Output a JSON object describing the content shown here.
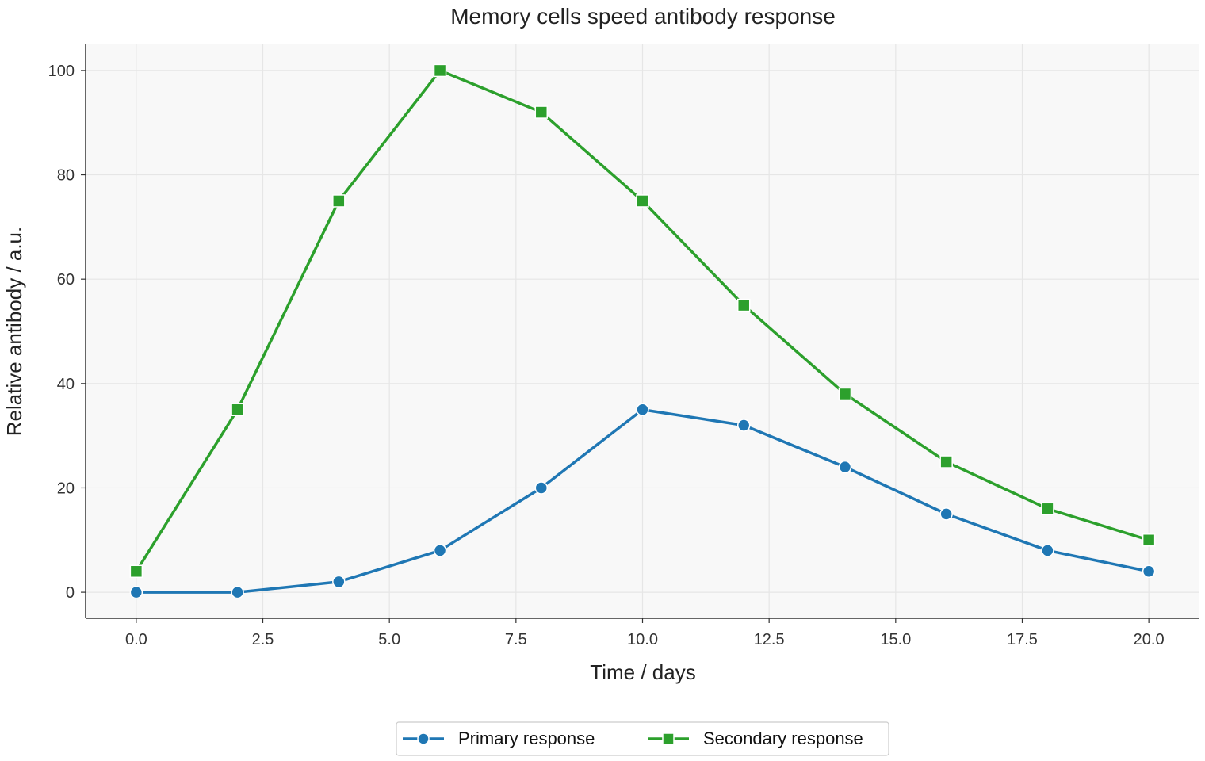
{
  "chart_data": {
    "type": "line",
    "title": "Memory cells speed antibody response",
    "xlabel": "Time / days",
    "ylabel": "Relative antibody / a.u.",
    "xlim": [
      -1,
      21
    ],
    "ylim": [
      -5,
      105
    ],
    "xticks": [
      0,
      2.5,
      5,
      7.5,
      10,
      12.5,
      15,
      17.5,
      20
    ],
    "xtick_labels": [
      "0.0",
      "2.5",
      "5.0",
      "7.5",
      "10.0",
      "12.5",
      "15.0",
      "17.5",
      "20.0"
    ],
    "yticks": [
      0,
      20,
      40,
      60,
      80,
      100
    ],
    "ytick_labels": [
      "0",
      "20",
      "40",
      "60",
      "80",
      "100"
    ],
    "grid": true,
    "legend_position": "bottom-center",
    "x": [
      0,
      2,
      4,
      6,
      8,
      10,
      12,
      14,
      16,
      18,
      20
    ],
    "series": [
      {
        "name": "Primary response",
        "color": "#1f77b4",
        "marker": "circle",
        "values": [
          0,
          0,
          2,
          8,
          20,
          35,
          32,
          24,
          15,
          8,
          4
        ]
      },
      {
        "name": "Secondary response",
        "color": "#2ca02c",
        "marker": "square",
        "values": [
          4,
          35,
          75,
          100,
          92,
          75,
          55,
          38,
          25,
          16,
          10
        ]
      }
    ],
    "plot_background": "#f8f8f8",
    "grid_color": "#e6e6e6"
  }
}
